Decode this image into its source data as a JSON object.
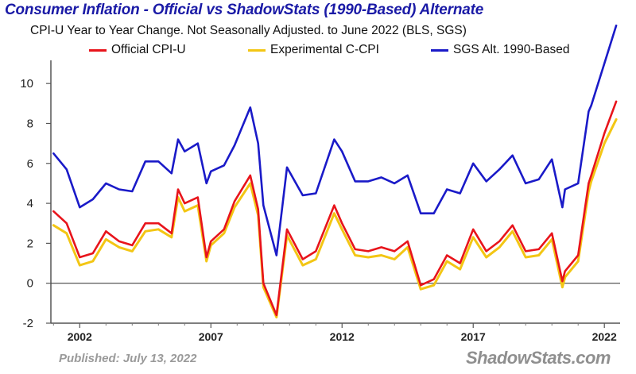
{
  "title": "Consumer Inflation - Official vs ShadowStats (1990-Based) Alternate",
  "subtitle": "CPI-U Year to Year Change. Not Seasonally Adjusted. to June 2022  (BLS, SGS)",
  "published": "Published: July 13, 2022",
  "watermark": "ShadowStats.com",
  "chart_data": {
    "type": "line",
    "title": "Consumer Inflation - Official vs ShadowStats (1990-Based) Alternate",
    "subtitle": "CPI-U Year to Year Change. Not Seasonally Adjusted. to June 2022  (BLS, SGS)",
    "xlabel": "",
    "ylabel": "",
    "xlim": [
      2000.9,
      2022.6
    ],
    "ylim": [
      -2,
      11
    ],
    "y_ticks": [
      -2,
      0,
      2,
      4,
      6,
      8,
      10
    ],
    "y_tick_labels": [
      "-2",
      "0",
      "2",
      "4",
      "6",
      "8",
      "10"
    ],
    "x_ticks": [
      2002,
      2007,
      2012,
      2017,
      2022
    ],
    "x_tick_labels": [
      "2002",
      "2007",
      "2012",
      "2017",
      "2022"
    ],
    "grid": false,
    "legend_position": "top",
    "series": [
      {
        "name": "Official CPI-U",
        "color": "#e8141b",
        "x": [
          2001.0,
          2001.5,
          2002.0,
          2002.5,
          2003.0,
          2003.5,
          2004.0,
          2004.5,
          2005.0,
          2005.5,
          2005.75,
          2006.0,
          2006.5,
          2006.83,
          2007.0,
          2007.5,
          2007.9,
          2008.5,
          2008.8,
          2009.0,
          2009.5,
          2009.9,
          2010.5,
          2011.0,
          2011.7,
          2012.0,
          2012.5,
          2013.0,
          2013.5,
          2014.0,
          2014.5,
          2015.0,
          2015.5,
          2016.0,
          2016.5,
          2017.0,
          2017.5,
          2018.0,
          2018.5,
          2019.0,
          2019.5,
          2020.0,
          2020.4,
          2020.5,
          2021.0,
          2021.4,
          2021.5,
          2022.0,
          2022.45
        ],
        "y": [
          3.6,
          3.0,
          1.3,
          1.5,
          2.6,
          2.1,
          1.9,
          3.0,
          3.0,
          2.5,
          4.7,
          4.0,
          4.3,
          1.3,
          2.1,
          2.7,
          4.1,
          5.4,
          3.7,
          0.0,
          -1.6,
          2.7,
          1.2,
          1.6,
          3.9,
          3.0,
          1.7,
          1.6,
          1.8,
          1.6,
          2.1,
          -0.1,
          0.2,
          1.4,
          1.0,
          2.7,
          1.6,
          2.1,
          2.9,
          1.6,
          1.7,
          2.5,
          0.1,
          0.6,
          1.4,
          5.0,
          5.4,
          7.5,
          9.1
        ]
      },
      {
        "name": "Experimental C-CPI",
        "color": "#f3c614",
        "x": [
          2001.0,
          2001.5,
          2002.0,
          2002.5,
          2003.0,
          2003.5,
          2004.0,
          2004.5,
          2005.0,
          2005.5,
          2005.75,
          2006.0,
          2006.5,
          2006.83,
          2007.0,
          2007.5,
          2007.9,
          2008.5,
          2008.8,
          2009.0,
          2009.5,
          2009.9,
          2010.5,
          2011.0,
          2011.7,
          2012.0,
          2012.5,
          2013.0,
          2013.5,
          2014.0,
          2014.5,
          2015.0,
          2015.5,
          2016.0,
          2016.5,
          2017.0,
          2017.5,
          2018.0,
          2018.5,
          2019.0,
          2019.5,
          2020.0,
          2020.4,
          2020.5,
          2021.0,
          2021.4,
          2021.5,
          2022.0,
          2022.45
        ],
        "y": [
          2.9,
          2.5,
          0.9,
          1.1,
          2.2,
          1.8,
          1.6,
          2.6,
          2.7,
          2.3,
          4.3,
          3.6,
          3.9,
          1.1,
          1.9,
          2.5,
          3.8,
          5.0,
          3.4,
          -0.2,
          -1.7,
          2.4,
          0.9,
          1.2,
          3.5,
          2.7,
          1.4,
          1.3,
          1.4,
          1.2,
          1.8,
          -0.3,
          -0.1,
          1.1,
          0.7,
          2.3,
          1.3,
          1.8,
          2.6,
          1.3,
          1.4,
          2.2,
          -0.2,
          0.3,
          1.1,
          4.6,
          5.1,
          7.0,
          8.2
        ]
      },
      {
        "name": "SGS  Alt. 1990-Based",
        "color": "#1a1ac8",
        "x": [
          2001.0,
          2001.5,
          2002.0,
          2002.5,
          2003.0,
          2003.5,
          2004.0,
          2004.5,
          2005.0,
          2005.5,
          2005.75,
          2006.0,
          2006.5,
          2006.83,
          2007.0,
          2007.5,
          2007.9,
          2008.5,
          2008.8,
          2009.0,
          2009.5,
          2009.9,
          2010.5,
          2011.0,
          2011.7,
          2012.0,
          2012.5,
          2013.0,
          2013.5,
          2014.0,
          2014.5,
          2015.0,
          2015.5,
          2016.0,
          2016.5,
          2017.0,
          2017.5,
          2018.0,
          2018.5,
          2019.0,
          2019.5,
          2020.0,
          2020.4,
          2020.5,
          2021.0,
          2021.4,
          2021.5,
          2022.0,
          2022.45
        ],
        "y": [
          6.5,
          5.7,
          3.8,
          4.2,
          5.0,
          4.7,
          4.6,
          6.1,
          6.1,
          5.5,
          7.2,
          6.6,
          7.0,
          5.0,
          5.6,
          5.9,
          6.9,
          8.8,
          7.0,
          3.9,
          1.4,
          5.8,
          4.4,
          4.5,
          7.2,
          6.6,
          5.1,
          5.1,
          5.3,
          5.0,
          5.4,
          3.5,
          3.5,
          4.7,
          4.5,
          6.0,
          5.1,
          5.7,
          6.4,
          5.0,
          5.2,
          6.2,
          3.8,
          4.7,
          5.0,
          8.6,
          8.9,
          11.0,
          12.9
        ]
      }
    ]
  }
}
